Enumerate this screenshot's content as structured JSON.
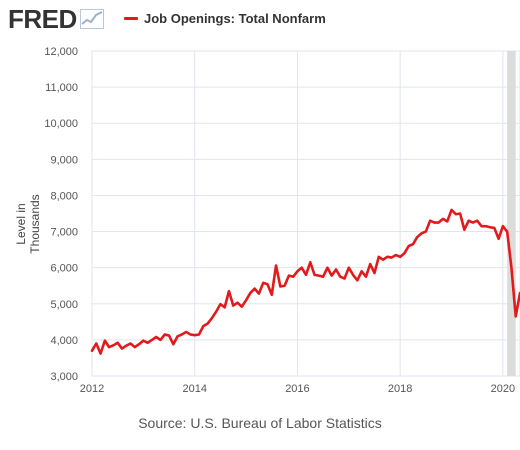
{
  "header": {
    "logo_text": "FRED",
    "logo_icon": "mini-line-chart-icon",
    "legend_label": "Job Openings: Total Nonfarm"
  },
  "colors": {
    "series": "#e31a1c",
    "grid": "#e1e5ef",
    "plot_background": "#ffffff",
    "recession_band": "#dcdcdc",
    "axis_text": "#555555"
  },
  "chart_data": {
    "type": "line",
    "title": "",
    "xlabel": "",
    "ylabel": "Level in Thousands",
    "source": "Source: U.S. Bureau of Labor Statistics",
    "xlim": [
      "2012-01",
      "2020-05"
    ],
    "ylim": [
      3000,
      12000
    ],
    "yticks": [
      3000,
      4000,
      5000,
      6000,
      7000,
      8000,
      9000,
      10000,
      11000,
      12000
    ],
    "ytick_labels": [
      "3,000",
      "4,000",
      "5,000",
      "6,000",
      "7,000",
      "8,000",
      "9,000",
      "10,000",
      "11,000",
      "12,000"
    ],
    "xticks": [
      "2012-01",
      "2014-01",
      "2016-01",
      "2018-01",
      "2020-01"
    ],
    "xtick_labels": [
      "2012",
      "2014",
      "2016",
      "2018",
      "2020"
    ],
    "grid": true,
    "legend_position": "top",
    "shaded_regions": [
      {
        "start": "2020-02",
        "end": "2020-04",
        "label": "recession"
      }
    ],
    "series": [
      {
        "name": "Job Openings: Total Nonfarm",
        "x": [
          "2012-01",
          "2012-02",
          "2012-03",
          "2012-04",
          "2012-05",
          "2012-06",
          "2012-07",
          "2012-08",
          "2012-09",
          "2012-10",
          "2012-11",
          "2012-12",
          "2013-01",
          "2013-02",
          "2013-03",
          "2013-04",
          "2013-05",
          "2013-06",
          "2013-07",
          "2013-08",
          "2013-09",
          "2013-10",
          "2013-11",
          "2013-12",
          "2014-01",
          "2014-02",
          "2014-03",
          "2014-04",
          "2014-05",
          "2014-06",
          "2014-07",
          "2014-08",
          "2014-09",
          "2014-10",
          "2014-11",
          "2014-12",
          "2015-01",
          "2015-02",
          "2015-03",
          "2015-04",
          "2015-05",
          "2015-06",
          "2015-07",
          "2015-08",
          "2015-09",
          "2015-10",
          "2015-11",
          "2015-12",
          "2016-01",
          "2016-02",
          "2016-03",
          "2016-04",
          "2016-05",
          "2016-06",
          "2016-07",
          "2016-08",
          "2016-09",
          "2016-10",
          "2016-11",
          "2016-12",
          "2017-01",
          "2017-02",
          "2017-03",
          "2017-04",
          "2017-05",
          "2017-06",
          "2017-07",
          "2017-08",
          "2017-09",
          "2017-10",
          "2017-11",
          "2017-12",
          "2018-01",
          "2018-02",
          "2018-03",
          "2018-04",
          "2018-05",
          "2018-06",
          "2018-07",
          "2018-08",
          "2018-09",
          "2018-10",
          "2018-11",
          "2018-12",
          "2019-01",
          "2019-02",
          "2019-03",
          "2019-04",
          "2019-05",
          "2019-06",
          "2019-07",
          "2019-08",
          "2019-09",
          "2019-10",
          "2019-11",
          "2019-12",
          "2020-01",
          "2020-02",
          "2020-03",
          "2020-04",
          "2020-05"
        ],
        "values": [
          3700,
          3900,
          3620,
          3980,
          3800,
          3850,
          3920,
          3760,
          3840,
          3900,
          3800,
          3880,
          3980,
          3920,
          4000,
          4080,
          4000,
          4150,
          4120,
          3880,
          4100,
          4150,
          4220,
          4150,
          4130,
          4150,
          4380,
          4450,
          4600,
          4780,
          4990,
          4900,
          5350,
          4950,
          5030,
          4920,
          5100,
          5300,
          5420,
          5280,
          5580,
          5540,
          5250,
          6060,
          5480,
          5500,
          5780,
          5750,
          5900,
          6000,
          5800,
          6150,
          5800,
          5780,
          5750,
          6000,
          5780,
          5950,
          5750,
          5700,
          6000,
          5800,
          5650,
          5900,
          5750,
          6100,
          5850,
          6300,
          6220,
          6300,
          6280,
          6350,
          6300,
          6400,
          6600,
          6650,
          6850,
          6950,
          7000,
          7300,
          7250,
          7250,
          7350,
          7280,
          7600,
          7480,
          7500,
          7050,
          7300,
          7250,
          7300,
          7150,
          7150,
          7120,
          7100,
          6800,
          7150,
          7000,
          6000,
          4650,
          5300
        ]
      }
    ]
  }
}
